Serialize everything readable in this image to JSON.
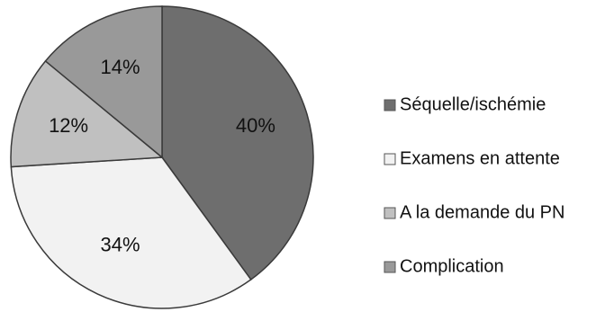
{
  "chart_data": {
    "type": "pie",
    "title": "",
    "legend_position": "right",
    "series": [
      {
        "categories": [
          "Séquelle/ischémie",
          "Examens en attente",
          "A la demande du PN",
          "Complication"
        ],
        "values": [
          40,
          34,
          12,
          14
        ],
        "labels": [
          "40%",
          "34%",
          "12%",
          "14%"
        ],
        "colors": [
          "#6e6e6e",
          "#f2f2f2",
          "#c0c0c0",
          "#999999"
        ]
      }
    ]
  }
}
